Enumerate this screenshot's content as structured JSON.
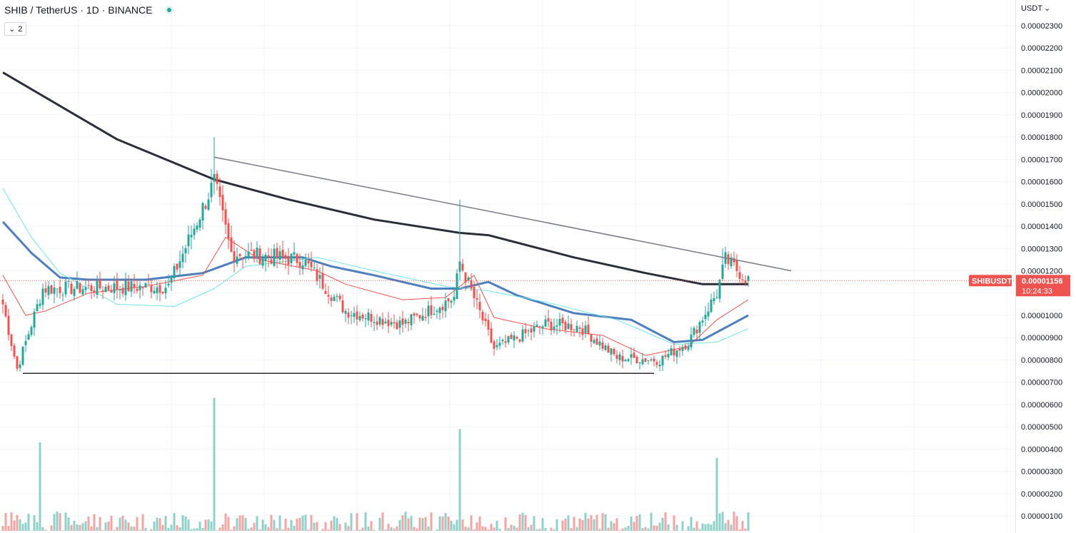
{
  "header": {
    "symbol_line": "SHIB / TetherUS · 1D · BINANCE",
    "collapse_count": "2",
    "currency": "USDT"
  },
  "price_tag": {
    "symbol": "SHIBUSDT",
    "price": "0.00001156",
    "countdown": "10:24:33",
    "value": 1.156e-05,
    "color": "#ef5350"
  },
  "colors": {
    "up": "#26a69a",
    "down": "#ef5350",
    "vol_up": "#8fd0c9",
    "vol_down": "#f2a5a3",
    "ma_fast": "#ef5350",
    "ma_mid": "#4f7fbf",
    "ma_slow_light": "#6fe6e6",
    "ma_long": "#2a2e39",
    "trendline": "#787b86"
  },
  "chart_data": {
    "type": "candlestick",
    "title": "SHIB / TetherUS · 1D · BINANCE",
    "y_axis_ticks": [
      "0.00002300",
      "0.00002200",
      "0.00002100",
      "0.00002000",
      "0.00001900",
      "0.00001800",
      "0.00001700",
      "0.00001600",
      "0.00001500",
      "0.00001400",
      "0.00001300",
      "0.00001200",
      "0.00001100",
      "0.00001000",
      "0.00000900",
      "0.00000800",
      "0.00000700",
      "0.00000600",
      "0.00000500",
      "0.00000400",
      "0.00000300",
      "0.00000200",
      "0.00000100"
    ],
    "ylim": [
      3e-07,
      2.38e-05
    ],
    "last_price": 1.156e-05,
    "key_points": [
      {
        "bar": 0,
        "close": 1.05e-05
      },
      {
        "bar": 5,
        "close": 7.6e-06
      },
      {
        "bar": 14,
        "close": 1.12e-05
      },
      {
        "bar": 58,
        "close": 1.13e-05
      },
      {
        "bar": 74,
        "close": 1.6e-05
      },
      {
        "bar": 80,
        "close": 1.28e-05
      },
      {
        "bar": 105,
        "close": 1.25e-05
      },
      {
        "bar": 120,
        "close": 1.02e-05
      },
      {
        "bar": 140,
        "close": 9.6e-06
      },
      {
        "bar": 158,
        "close": 1.08e-05
      },
      {
        "bar": 160,
        "close": 1.24e-05
      },
      {
        "bar": 172,
        "close": 8.5e-06
      },
      {
        "bar": 190,
        "close": 9.6e-06
      },
      {
        "bar": 202,
        "close": 9.5e-06
      },
      {
        "bar": 215,
        "close": 8.1e-06
      },
      {
        "bar": 230,
        "close": 8e-06
      },
      {
        "bar": 240,
        "close": 8.8e-06
      },
      {
        "bar": 250,
        "close": 1.1e-05
      },
      {
        "bar": 253,
        "close": 1.25e-05
      },
      {
        "bar": 261,
        "close": 1.16e-05
      }
    ],
    "spikes": [
      {
        "bar": 74,
        "high": 1.8e-05
      },
      {
        "bar": 160,
        "high": 1.52e-05
      },
      {
        "bar": 252,
        "high": 1.3e-05
      }
    ],
    "volume_spikes": [
      {
        "bar": 13,
        "volume": 4.3e-06
      },
      {
        "bar": 74,
        "volume": 6.3e-06
      },
      {
        "bar": 160,
        "volume": 4.9e-06
      },
      {
        "bar": 250,
        "volume": 3.6e-06
      }
    ],
    "moving_averages": [
      {
        "color": "#2a2e39",
        "points": [
          [
            0,
            2.09e-05
          ],
          [
            40,
            1.79e-05
          ],
          [
            74,
            1.61e-05
          ],
          [
            100,
            1.52e-05
          ],
          [
            130,
            1.43e-05
          ],
          [
            160,
            1.37e-05
          ],
          [
            170,
            1.36e-05
          ],
          [
            200,
            1.26e-05
          ],
          [
            225,
            1.19e-05
          ],
          [
            245,
            1.14e-05
          ],
          [
            261,
            1.14e-05
          ]
        ]
      },
      {
        "color": "#4f7fbf",
        "points": [
          [
            0,
            1.42e-05
          ],
          [
            10,
            1.28e-05
          ],
          [
            20,
            1.17e-05
          ],
          [
            30,
            1.16e-05
          ],
          [
            50,
            1.16e-05
          ],
          [
            70,
            1.19e-05
          ],
          [
            85,
            1.26e-05
          ],
          [
            105,
            1.26e-05
          ],
          [
            115,
            1.22e-05
          ],
          [
            130,
            1.18e-05
          ],
          [
            150,
            1.12e-05
          ],
          [
            160,
            1.12e-05
          ],
          [
            170,
            1.15e-05
          ],
          [
            180,
            1.09e-05
          ],
          [
            200,
            1.01e-05
          ],
          [
            220,
            9.8e-06
          ],
          [
            235,
            8.8e-06
          ],
          [
            245,
            8.9e-06
          ],
          [
            261,
            1e-05
          ]
        ]
      },
      {
        "color": "#6fe6e6",
        "points": [
          [
            0,
            1.57e-05
          ],
          [
            10,
            1.35e-05
          ],
          [
            20,
            1.19e-05
          ],
          [
            40,
            1.05e-05
          ],
          [
            60,
            1.04e-05
          ],
          [
            74,
            1.12e-05
          ],
          [
            85,
            1.22e-05
          ],
          [
            110,
            1.26e-05
          ],
          [
            130,
            1.2e-05
          ],
          [
            155,
            1.13e-05
          ],
          [
            170,
            1.11e-05
          ],
          [
            190,
            1.06e-05
          ],
          [
            215,
            9.8e-06
          ],
          [
            235,
            8.7e-06
          ],
          [
            250,
            8.8e-06
          ],
          [
            261,
            9.4e-06
          ]
        ]
      },
      {
        "color": "#ef5350",
        "points": [
          [
            0,
            1.18e-05
          ],
          [
            8,
            1e-05
          ],
          [
            15,
            1.02e-05
          ],
          [
            30,
            1.1e-05
          ],
          [
            50,
            1.13e-05
          ],
          [
            70,
            1.18e-05
          ],
          [
            78,
            1.35e-05
          ],
          [
            90,
            1.25e-05
          ],
          [
            110,
            1.2e-05
          ],
          [
            120,
            1.14e-05
          ],
          [
            140,
            1.07e-05
          ],
          [
            155,
            1.08e-05
          ],
          [
            165,
            1.18e-05
          ],
          [
            172,
            9.9e-06
          ],
          [
            190,
            9.4e-06
          ],
          [
            210,
            9.1e-06
          ],
          [
            225,
            8.2e-06
          ],
          [
            240,
            8.6e-06
          ],
          [
            250,
            9.8e-06
          ],
          [
            261,
            1.07e-05
          ]
        ]
      }
    ],
    "trendlines": [
      {
        "name": "descending-resistance",
        "from": [
          74,
          1.71e-05
        ],
        "to": [
          276,
          1.2e-05
        ]
      },
      {
        "name": "horizontal-support",
        "from": [
          7,
          7.4e-06
        ],
        "to": [
          228,
          7.4e-06
        ]
      }
    ],
    "bar_count": 262,
    "grid": true
  }
}
